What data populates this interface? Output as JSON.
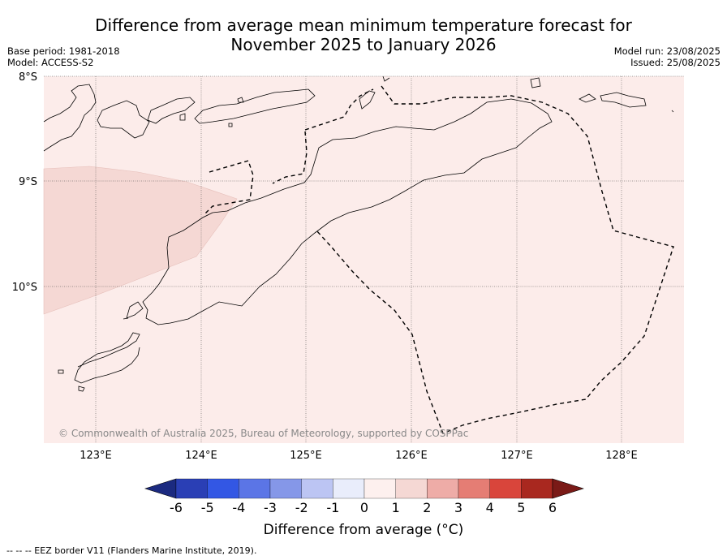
{
  "title": {
    "line1": "Difference from average mean minimum temperature forecast for",
    "line2": "November 2025 to January 2026"
  },
  "meta_left": {
    "base_period": "Base period: 1981-2018",
    "model": "Model: ACCESS-S2"
  },
  "meta_right": {
    "model_run": "Model run: 23/08/2025",
    "issued": "Issued: 25/08/2025"
  },
  "map": {
    "lat_labels": [
      "8°S",
      "9°S",
      "10°S"
    ],
    "lon_labels": [
      "123°E",
      "124°E",
      "125°E",
      "126°E",
      "127°E",
      "128°E"
    ],
    "copyright": "© Commonwealth of Australia 2025, Bureau of Meteorology, supported by COSPPac",
    "colors": {
      "ocean_anomaly_0_1": "#fcecea",
      "anomaly_1_2": "#f5d8d4",
      "coast": "#000000",
      "grid": "#555555"
    }
  },
  "colorbar": {
    "ticks": [
      "-6",
      "-5",
      "-4",
      "-3",
      "-2",
      "-1",
      "0",
      "1",
      "2",
      "3",
      "4",
      "5",
      "6"
    ],
    "colors": [
      "#1b2a80",
      "#2a3fb5",
      "#3357e4",
      "#5b75e6",
      "#8597e8",
      "#bcc5f3",
      "#e9edfb",
      "#fdf0ee",
      "#f5d8d4",
      "#eeaca7",
      "#e57d74",
      "#d9453b",
      "#a9281f",
      "#7a1a17"
    ],
    "label": "Difference from average (°C)"
  },
  "footnote": "--  --  -- EEZ border V11 (Flanders Marine Institute, 2019)."
}
